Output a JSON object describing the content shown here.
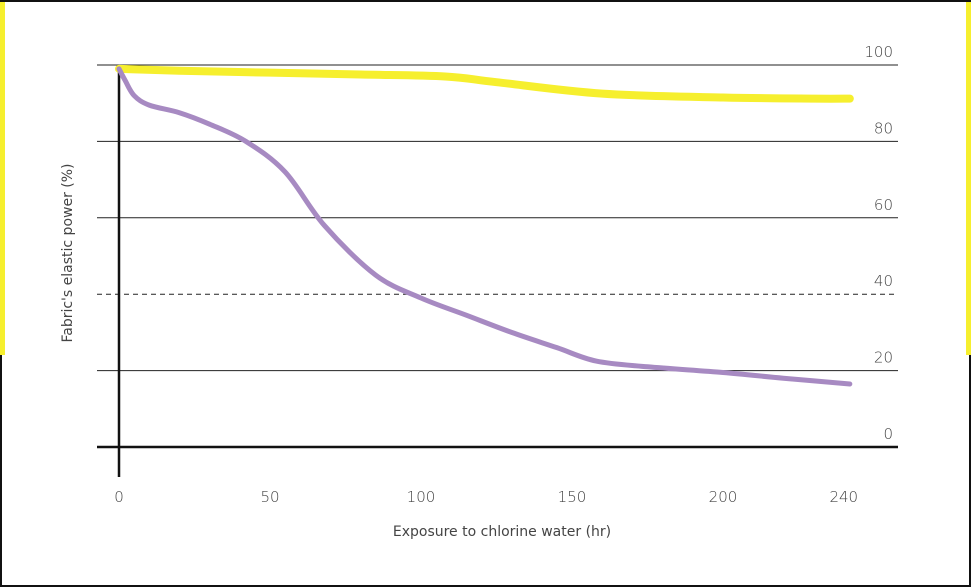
{
  "chart_data": {
    "type": "line",
    "xlabel": "Exposure to chlorine water (hr)",
    "ylabel": "Fabric's elastic power (%)",
    "xlim": [
      0,
      240
    ],
    "ylim": [
      0,
      100
    ],
    "x_ticks": [
      0,
      50,
      100,
      150,
      200,
      240
    ],
    "y_ticks": [
      0,
      20,
      40,
      60,
      80,
      100
    ],
    "dashed_gridline": 40,
    "series": [
      {
        "color": "#f6ef2e",
        "x": [
          0,
          20,
          50,
          80,
          108,
          125,
          160,
          200,
          230,
          242
        ],
        "y": [
          99,
          98.5,
          98,
          97.5,
          97,
          95.5,
          92.5,
          91.5,
          91.2,
          91.2
        ]
      },
      {
        "color": "#a78ac2",
        "x": [
          0,
          2,
          5,
          10,
          20,
          30,
          42,
          55,
          68,
          85,
          100,
          115,
          130,
          145,
          158,
          175,
          200,
          220,
          242
        ],
        "y": [
          99,
          96,
          92,
          89.5,
          87.5,
          84.5,
          80,
          72,
          58,
          45,
          39,
          34.5,
          30,
          26,
          22.5,
          21,
          19.5,
          18,
          16.5
        ]
      }
    ]
  }
}
